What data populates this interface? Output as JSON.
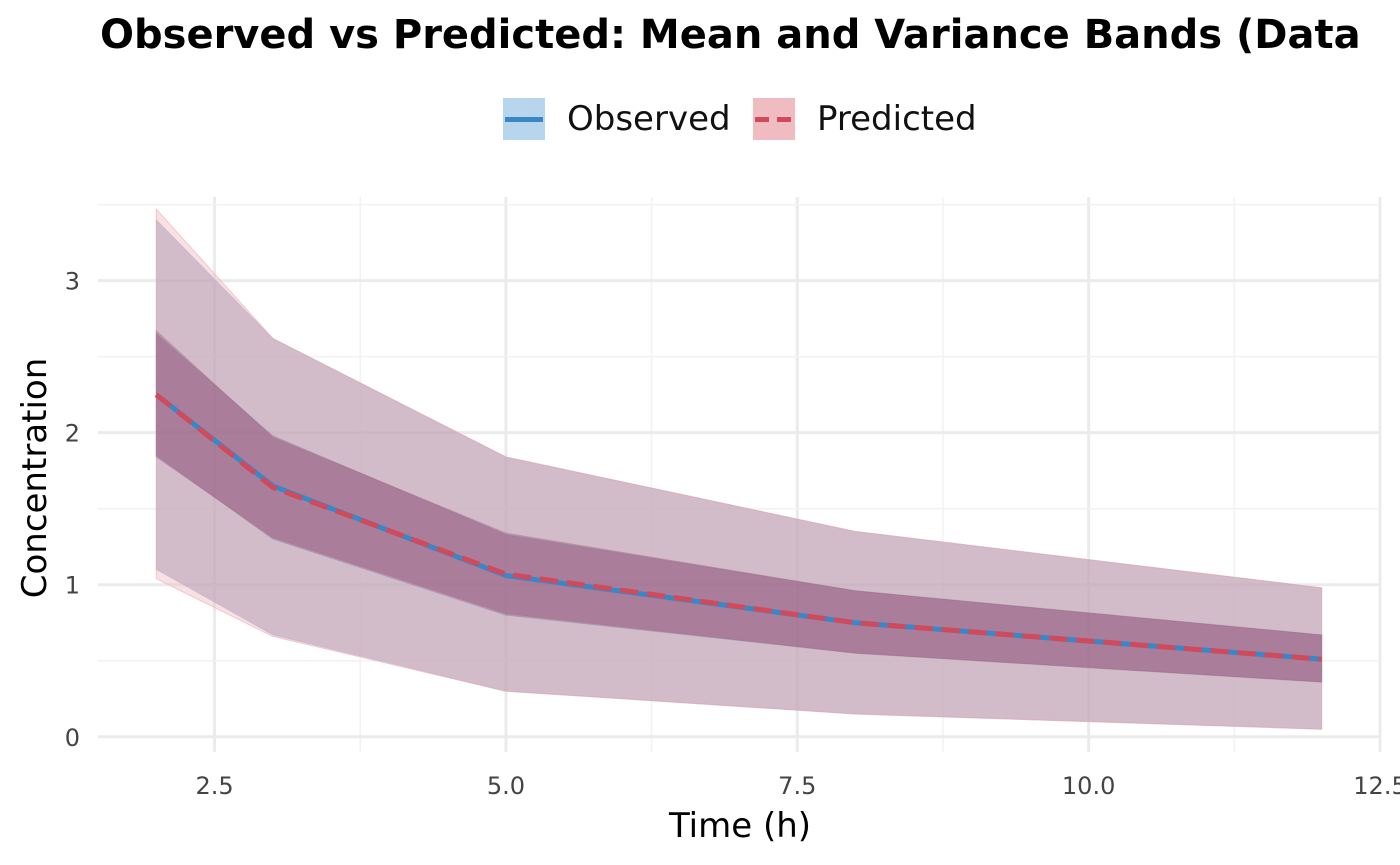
{
  "chart_data": {
    "type": "line",
    "title": "Observed vs Predicted: Mean and Variance Bands (Data",
    "xlabel": "Time (h)",
    "ylabel": "Concentration",
    "xlim": [
      1.5,
      12.5
    ],
    "ylim": [
      -0.1,
      3.55
    ],
    "x_ticks": [
      2.5,
      5.0,
      7.5,
      10.0,
      12.5
    ],
    "x_tick_labels": [
      "2.5",
      "5.0",
      "7.5",
      "10.0",
      "12.5"
    ],
    "y_ticks": [
      0,
      1,
      2,
      3
    ],
    "y_tick_labels": [
      "0",
      "1",
      "2",
      "3"
    ],
    "grid": true,
    "legend_position": "top",
    "x": [
      2,
      3,
      5,
      8,
      12
    ],
    "series": [
      {
        "name": "Observed",
        "color": "#3a87c8",
        "band_color": "#b7d5ec",
        "line_style": "solid",
        "mean": [
          2.25,
          1.65,
          1.06,
          0.75,
          0.51
        ],
        "inner_lower": [
          1.85,
          1.3,
          0.8,
          0.55,
          0.36
        ],
        "inner_upper": [
          2.65,
          1.98,
          1.33,
          0.96,
          0.67
        ],
        "outer_lower": [
          1.1,
          0.67,
          0.3,
          0.15,
          0.05
        ],
        "outer_upper": [
          3.4,
          2.62,
          1.84,
          1.35,
          0.98
        ]
      },
      {
        "name": "Predicted",
        "color": "#d04a5c",
        "band_color": "#f0bcc2",
        "line_style": "dashed",
        "mean": [
          2.25,
          1.64,
          1.07,
          0.75,
          0.51
        ],
        "inner_lower": [
          1.84,
          1.31,
          0.81,
          0.55,
          0.36
        ],
        "inner_upper": [
          2.67,
          1.97,
          1.34,
          0.96,
          0.67
        ],
        "outer_lower": [
          1.04,
          0.66,
          0.3,
          0.15,
          0.05
        ],
        "outer_upper": [
          3.47,
          2.62,
          1.84,
          1.35,
          0.98
        ]
      }
    ]
  }
}
